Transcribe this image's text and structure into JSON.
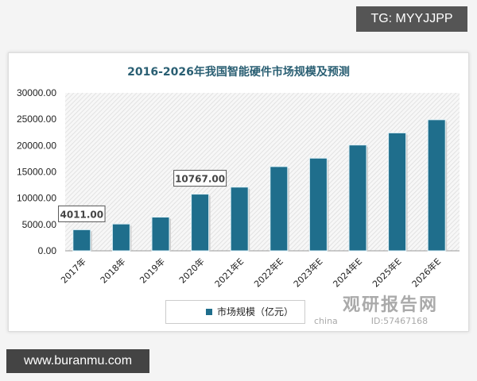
{
  "watermark_top": "TG: MYYJJPP",
  "watermark_bottom": "www.buranmu.com",
  "watermark_logo": {
    "name": "观研报告网",
    "sub": "china",
    "id": "ID:57467168"
  },
  "chart_data": {
    "type": "bar",
    "title": "2016-2026年我国智能硬件市场规模及预测",
    "categories": [
      "2017年",
      "2018年",
      "2019年",
      "2020年",
      "2021年E",
      "2022年E",
      "2023年E",
      "2024年E",
      "2025年E",
      "2026年E"
    ],
    "series": [
      {
        "name": "市场规模（亿元）",
        "values": [
          4011,
          5100,
          6400,
          10767,
          12100,
          16000,
          17600,
          20100,
          22400,
          24900
        ],
        "color": "#1f6e8c"
      }
    ],
    "data_labels": [
      {
        "category": "2017年",
        "text": "4011.00"
      },
      {
        "category": "2020年",
        "text": "10767.00"
      }
    ],
    "ylim": [
      0,
      30000
    ],
    "yticks": [
      "0.00",
      "5000.00",
      "10000.00",
      "15000.00",
      "20000.00",
      "25000.00",
      "30000.00"
    ],
    "grid": false,
    "legend_position": "bottom"
  }
}
